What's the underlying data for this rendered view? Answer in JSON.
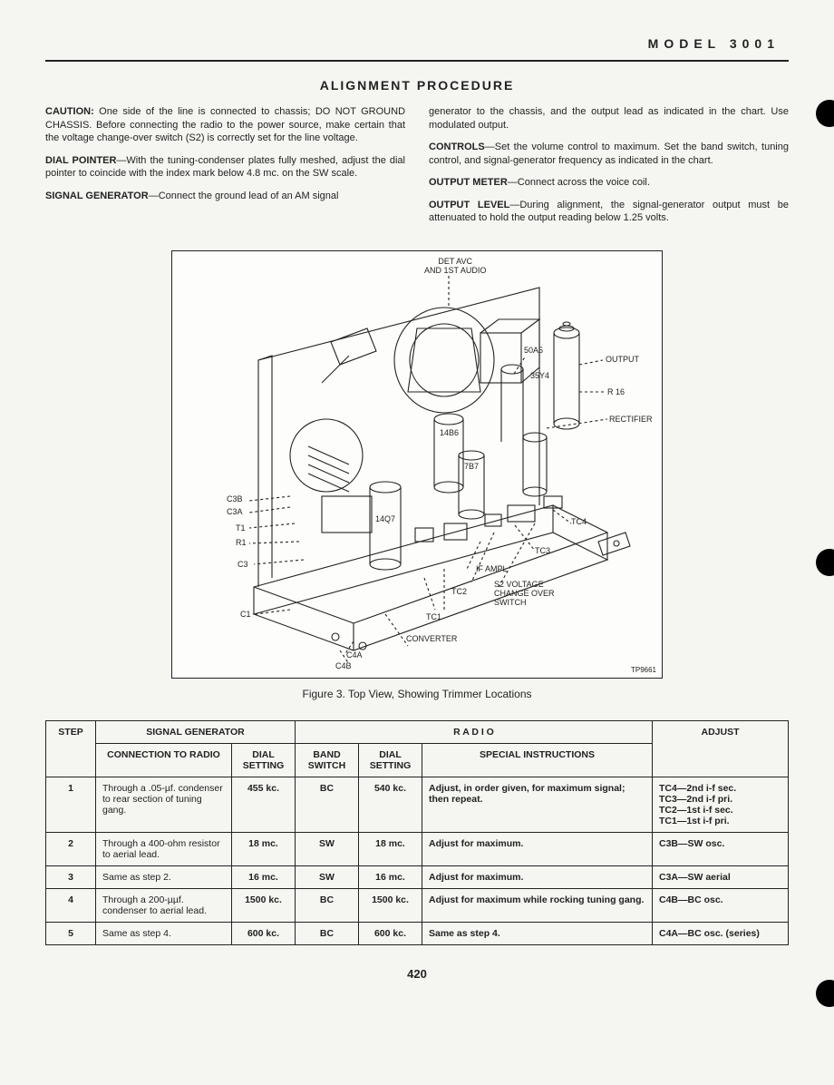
{
  "header": {
    "model": "MODEL 3001"
  },
  "title": "ALIGNMENT PROCEDURE",
  "left_col": {
    "p1a": "CAUTION: ",
    "p1b": "One side of the line is connected to chassis; DO NOT GROUND CHASSIS. Before connecting the radio to the power source, make certain that the voltage change-over switch (S2) is correctly set for the line voltage.",
    "p2a": "DIAL POINTER",
    "p2b": "—With the tuning-condenser plates fully meshed, adjust the dial pointer to coincide with the index mark below 4.8 mc. on the SW scale.",
    "p3a": "SIGNAL GENERATOR",
    "p3b": "—Connect the ground lead of an AM signal"
  },
  "right_col": {
    "p1": "generator to the chassis, and the output lead as indicated in the chart. Use modulated output.",
    "p2a": "CONTROLS",
    "p2b": "—Set the volume control to maximum. Set the band switch, tuning control, and signal-generator frequency as indicated in the chart.",
    "p3a": "OUTPUT METER",
    "p3b": "—Connect across the voice coil.",
    "p4a": "OUTPUT LEVEL",
    "p4b": "—During alignment, the signal-generator output must be attenuated to hold the output reading below 1.25 volts."
  },
  "figure": {
    "caption": "Figure 3.  Top View, Showing Trimmer Locations",
    "labels": {
      "det_avc": "DET AVC\nAND 1ST AUDIO",
      "output": "OUTPUT",
      "r16": "R 16",
      "rectifier": "RECTIFIER",
      "a50a5": "50A5",
      "a35y4": "35Y4",
      "a14b6": "14B6",
      "a7b7": "7B7",
      "a14q7": "14Q7",
      "c3b": "C3B",
      "c3a": "C3A",
      "t1": "T1",
      "r1": "R1",
      "c3": "C3",
      "c1": "C1",
      "tc4": "TC4",
      "tc3": "TC3",
      "tc2": "TC2",
      "tc1": "TC1",
      "if_ampl": "IF AMPL",
      "s2": "S2 VOLTAGE\nCHANGE OVER\nSWITCH",
      "converter": "CONVERTER",
      "c4a": "C4A",
      "c4b": "C4B",
      "tp": "TP9661"
    }
  },
  "table": {
    "headers": {
      "step": "STEP",
      "siggen": "SIGNAL GENERATOR",
      "conn": "CONNECTION TO RADIO",
      "dial_set": "DIAL SETTING",
      "radio": "R A D I O",
      "band": "BAND SWITCH",
      "dial_set2": "DIAL SETTING",
      "special": "SPECIAL INSTRUCTIONS",
      "adjust": "ADJUST"
    },
    "rows": [
      {
        "step": "1",
        "conn": "Through a .05-µf. condenser to rear section of tuning gang.",
        "dial": "455 kc.",
        "band": "BC",
        "dial2": "540 kc.",
        "spec": "Adjust, in order given, for maximum signal; then repeat.",
        "adj": "TC4—2nd i-f sec.\nTC3—2nd i-f pri.\nTC2—1st i-f sec.\nTC1—1st i-f pri."
      },
      {
        "step": "2",
        "conn": "Through a 400-ohm resistor to aerial lead.",
        "dial": "18 mc.",
        "band": "SW",
        "dial2": "18 mc.",
        "spec": "Adjust for maximum.",
        "adj": "C3B—SW osc."
      },
      {
        "step": "3",
        "conn": "Same as step 2.",
        "dial": "16 mc.",
        "band": "SW",
        "dial2": "16 mc.",
        "spec": "Adjust for maximum.",
        "adj": "C3A—SW aerial"
      },
      {
        "step": "4",
        "conn": "Through a 200-µµf. condenser to aerial lead.",
        "dial": "1500 kc.",
        "band": "BC",
        "dial2": "1500 kc.",
        "spec": "Adjust for maximum while rocking tuning gang.",
        "adj": "C4B—BC osc."
      },
      {
        "step": "5",
        "conn": "Same as step 4.",
        "dial": "600 kc.",
        "band": "BC",
        "dial2": "600 kc.",
        "spec": "Same as step 4.",
        "adj": "C4A—BC osc. (series)"
      }
    ]
  },
  "page_number": "420",
  "colors": {
    "line": "#222",
    "bg": "#f5f5f2"
  }
}
